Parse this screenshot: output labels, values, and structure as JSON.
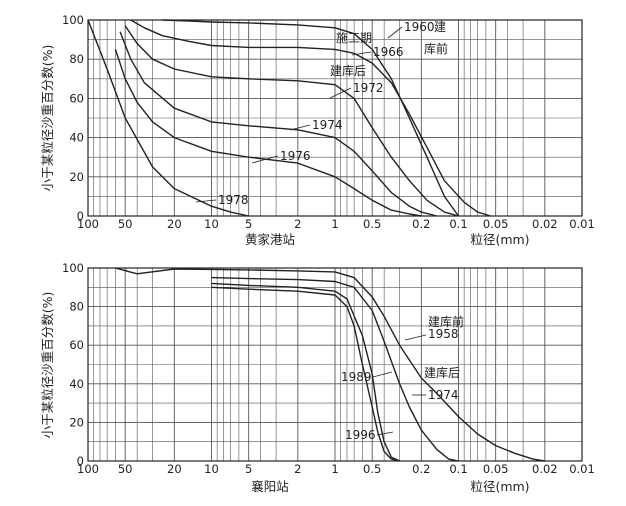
{
  "chart_data": [
    {
      "type": "line",
      "title": "",
      "station": "黄家港站",
      "xlabel": "粒径(mm)",
      "ylabel": "小于某粒径沙重百分数(%)",
      "x_scale": "log",
      "x_reversed": true,
      "xlim": [
        100,
        0.01
      ],
      "ylim": [
        0,
        100
      ],
      "grid": true,
      "x_ticks": [
        "100",
        "50",
        "20",
        "10",
        "5",
        "2",
        "1",
        "0.5",
        "0.2",
        "0.1",
        "0.05",
        "0.02",
        "0.01"
      ],
      "y_ticks": [
        "0",
        "20",
        "40",
        "60",
        "80",
        "100"
      ],
      "series": [
        {
          "name": "1960",
          "x": [
            25,
            15,
            10,
            5,
            2,
            1,
            0.7,
            0.5,
            0.35,
            0.25,
            0.18,
            0.13,
            0.1
          ],
          "y": [
            100,
            99.5,
            99,
            98.5,
            97.5,
            96,
            93,
            85,
            70,
            50,
            30,
            10,
            0
          ]
        },
        {
          "name": "1966",
          "x": [
            45,
            35,
            25,
            15,
            10,
            5,
            2,
            1,
            0.7,
            0.5,
            0.35,
            0.25,
            0.18,
            0.13,
            0.09,
            0.07,
            0.055
          ],
          "y": [
            100,
            96,
            92,
            89,
            87,
            86,
            86,
            85,
            83,
            78,
            68,
            52,
            35,
            18,
            7,
            2,
            0
          ]
        },
        {
          "name": "1972",
          "x": [
            50,
            40,
            30,
            20,
            10,
            5,
            2,
            1,
            0.7,
            0.5,
            0.35,
            0.25,
            0.18,
            0.13,
            0.1
          ],
          "y": [
            97,
            88,
            80,
            75,
            71,
            70,
            69,
            67,
            60,
            45,
            30,
            18,
            8,
            2,
            0
          ]
        },
        {
          "name": "1974",
          "x": [
            55,
            45,
            35,
            20,
            10,
            5,
            2,
            1,
            0.7,
            0.5,
            0.35,
            0.25,
            0.2,
            0.15
          ],
          "y": [
            94,
            80,
            68,
            55,
            48,
            46,
            44,
            40,
            33,
            23,
            12,
            5,
            2,
            0
          ]
        },
        {
          "name": "1976",
          "x": [
            60,
            50,
            40,
            30,
            20,
            10,
            5,
            2,
            1,
            0.7,
            0.5,
            0.35,
            0.25,
            0.2
          ],
          "y": [
            85,
            70,
            58,
            48,
            40,
            33,
            30,
            27,
            20,
            14,
            8,
            3,
            1,
            0
          ]
        },
        {
          "name": "1978",
          "x": [
            100,
            70,
            50,
            30,
            20,
            10,
            7,
            5
          ],
          "y": [
            100,
            75,
            50,
            25,
            14,
            5,
            2,
            0
          ]
        }
      ],
      "annotations": [
        "施工期",
        "建",
        "库前",
        "建库后"
      ]
    },
    {
      "type": "line",
      "title": "",
      "station": "襄阳站",
      "xlabel": "粒径(mm)",
      "ylabel": "小于某粒径沙重百分数(%)",
      "x_scale": "log",
      "x_reversed": true,
      "xlim": [
        100,
        0.01
      ],
      "ylim": [
        0,
        100
      ],
      "grid": true,
      "x_ticks": [
        "100",
        "50",
        "20",
        "10",
        "5",
        "2",
        "1",
        "0.5",
        "0.2",
        "0.1",
        "0.05",
        "0.02",
        "0.01"
      ],
      "y_ticks": [
        "0",
        "20",
        "40",
        "60",
        "80",
        "100"
      ],
      "series": [
        {
          "name": "1958",
          "x": [
            60,
            40,
            20,
            10,
            5,
            2,
            1,
            0.7,
            0.5,
            0.4,
            0.3,
            0.2,
            0.15,
            0.1,
            0.07,
            0.05,
            0.035,
            0.025,
            0.02
          ],
          "y": [
            100,
            97,
            99.5,
            99.3,
            99,
            98.5,
            98,
            95,
            85,
            75,
            60,
            43,
            35,
            23,
            14,
            8,
            4,
            1,
            0
          ]
        },
        {
          "name": "1974",
          "x": [
            10,
            5,
            2,
            1,
            0.7,
            0.5,
            0.4,
            0.3,
            0.25,
            0.2,
            0.15,
            0.12,
            0.1
          ],
          "y": [
            95,
            94.5,
            94,
            93,
            90,
            78,
            62,
            40,
            28,
            16,
            6,
            1,
            0
          ]
        },
        {
          "name": "1989",
          "x": [
            10,
            5,
            2,
            1,
            0.8,
            0.6,
            0.5,
            0.45,
            0.4,
            0.35,
            0.3
          ],
          "y": [
            92,
            91,
            90,
            88,
            84,
            65,
            45,
            25,
            10,
            2,
            0
          ]
        },
        {
          "name": "1996",
          "x": [
            10,
            5,
            2,
            1,
            0.8,
            0.7,
            0.6,
            0.5,
            0.45,
            0.4,
            0.35,
            0.3
          ],
          "y": [
            90,
            89,
            88,
            86,
            80,
            70,
            50,
            28,
            15,
            5,
            1,
            0
          ]
        }
      ],
      "annotations": [
        "建库前",
        "建库后"
      ]
    }
  ]
}
